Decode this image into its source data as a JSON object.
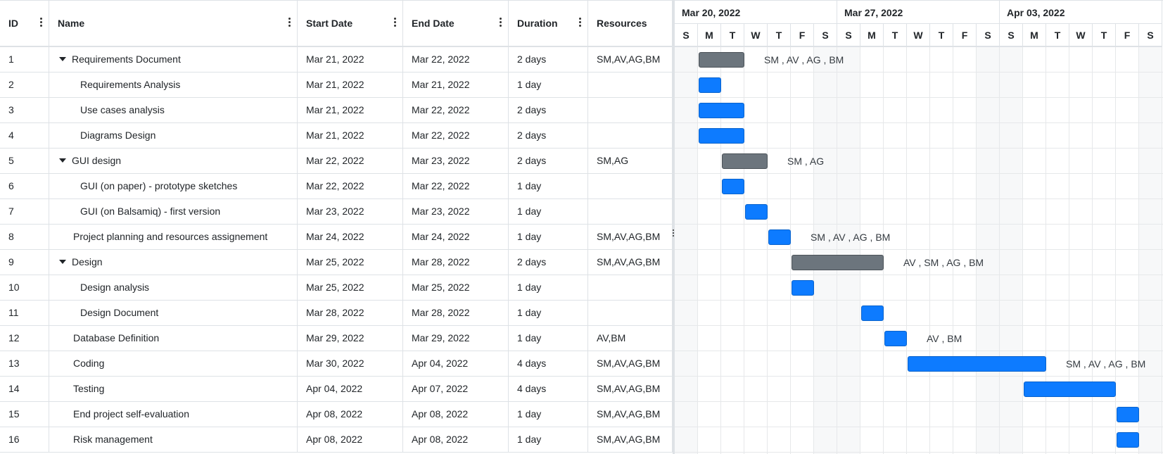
{
  "columns": [
    {
      "key": "id",
      "label": "ID"
    },
    {
      "key": "name",
      "label": "Name"
    },
    {
      "key": "start",
      "label": "Start Date"
    },
    {
      "key": "end",
      "label": "End Date"
    },
    {
      "key": "duration",
      "label": "Duration"
    },
    {
      "key": "resources",
      "label": "Resources"
    }
  ],
  "rows": [
    {
      "id": "1",
      "name": "Requirements Document",
      "start": "Mar 21, 2022",
      "end": "Mar 22, 2022",
      "duration": "2 days",
      "resources": "SM,AV,AG,BM",
      "level": 0,
      "parent": true,
      "type": "summary",
      "s": 1,
      "e": 2,
      "label": "SM , AV , AG , BM"
    },
    {
      "id": "2",
      "name": "Requirements Analysis",
      "start": "Mar 21, 2022",
      "end": "Mar 21, 2022",
      "duration": "1 day",
      "resources": "",
      "level": 1,
      "parent": false,
      "type": "task",
      "s": 1,
      "e": 1,
      "label": ""
    },
    {
      "id": "3",
      "name": "Use cases analysis",
      "start": "Mar 21, 2022",
      "end": "Mar 22, 2022",
      "duration": "2 days",
      "resources": "",
      "level": 1,
      "parent": false,
      "type": "task",
      "s": 1,
      "e": 2,
      "label": ""
    },
    {
      "id": "4",
      "name": "Diagrams Design",
      "start": "Mar 21, 2022",
      "end": "Mar 22, 2022",
      "duration": "2 days",
      "resources": "",
      "level": 1,
      "parent": false,
      "type": "task",
      "s": 1,
      "e": 2,
      "label": ""
    },
    {
      "id": "5",
      "name": "GUI design",
      "start": "Mar 22, 2022",
      "end": "Mar 23, 2022",
      "duration": "2 days",
      "resources": "SM,AG",
      "level": 0,
      "parent": true,
      "type": "summary",
      "s": 2,
      "e": 3,
      "label": "SM , AG"
    },
    {
      "id": "6",
      "name": "GUI (on paper) - prototype sketches",
      "start": "Mar 22, 2022",
      "end": "Mar 22, 2022",
      "duration": "1 day",
      "resources": "",
      "level": 1,
      "parent": false,
      "type": "task",
      "s": 2,
      "e": 2,
      "label": ""
    },
    {
      "id": "7",
      "name": "GUI (on Balsamiq) - first version",
      "start": "Mar 23, 2022",
      "end": "Mar 23, 2022",
      "duration": "1 day",
      "resources": "",
      "level": 1,
      "parent": false,
      "type": "task",
      "s": 3,
      "e": 3,
      "label": ""
    },
    {
      "id": "8",
      "name": "Project planning and resources assignement",
      "start": "Mar 24, 2022",
      "end": "Mar 24, 2022",
      "duration": "1 day",
      "resources": "SM,AV,AG,BM",
      "level": 0,
      "parent": false,
      "type": "task",
      "s": 4,
      "e": 4,
      "label": "SM , AV , AG , BM"
    },
    {
      "id": "9",
      "name": "Design",
      "start": "Mar 25, 2022",
      "end": "Mar 28, 2022",
      "duration": "2 days",
      "resources": "SM,AV,AG,BM",
      "level": 0,
      "parent": true,
      "type": "summary",
      "s": 5,
      "e": 8,
      "label": "AV , SM , AG , BM"
    },
    {
      "id": "10",
      "name": "Design analysis",
      "start": "Mar 25, 2022",
      "end": "Mar 25, 2022",
      "duration": "1 day",
      "resources": "",
      "level": 1,
      "parent": false,
      "type": "task",
      "s": 5,
      "e": 5,
      "label": ""
    },
    {
      "id": "11",
      "name": "Design Document",
      "start": "Mar 28, 2022",
      "end": "Mar 28, 2022",
      "duration": "1 day",
      "resources": "",
      "level": 1,
      "parent": false,
      "type": "task",
      "s": 8,
      "e": 8,
      "label": ""
    },
    {
      "id": "12",
      "name": "Database Definition",
      "start": "Mar 29, 2022",
      "end": "Mar 29, 2022",
      "duration": "1 day",
      "resources": "AV,BM",
      "level": 0,
      "parent": false,
      "type": "task",
      "s": 9,
      "e": 9,
      "label": "AV , BM"
    },
    {
      "id": "13",
      "name": "Coding",
      "start": "Mar 30, 2022",
      "end": "Apr 04, 2022",
      "duration": "4 days",
      "resources": "SM,AV,AG,BM",
      "level": 0,
      "parent": false,
      "type": "task",
      "s": 10,
      "e": 15,
      "label": "SM , AV , AG , BM"
    },
    {
      "id": "14",
      "name": "Testing",
      "start": "Apr 04, 2022",
      "end": "Apr 07, 2022",
      "duration": "4 days",
      "resources": "SM,AV,AG,BM",
      "level": 0,
      "parent": false,
      "type": "task",
      "s": 15,
      "e": 18,
      "label": ""
    },
    {
      "id": "15",
      "name": "End project self-evaluation",
      "start": "Apr 08, 2022",
      "end": "Apr 08, 2022",
      "duration": "1 day",
      "resources": "SM,AV,AG,BM",
      "level": 0,
      "parent": false,
      "type": "task",
      "s": 19,
      "e": 19,
      "label": ""
    },
    {
      "id": "16",
      "name": "Risk management",
      "start": "Apr 08, 2022",
      "end": "Apr 08, 2022",
      "duration": "1 day",
      "resources": "SM,AV,AG,BM",
      "level": 0,
      "parent": false,
      "type": "task",
      "s": 19,
      "e": 19,
      "label": ""
    }
  ],
  "timeline": {
    "weeks": [
      "Mar 20, 2022",
      "Mar 27, 2022",
      "Apr 03, 2022"
    ],
    "days": [
      "S",
      "M",
      "T",
      "W",
      "T",
      "F",
      "S",
      "S",
      "M",
      "T",
      "W",
      "T",
      "F",
      "S",
      "S",
      "M",
      "T",
      "W",
      "T",
      "F",
      "S"
    ]
  },
  "colors": {
    "task": "#0d7bff",
    "summary": "#6c757d",
    "border": "#dee2e6"
  }
}
